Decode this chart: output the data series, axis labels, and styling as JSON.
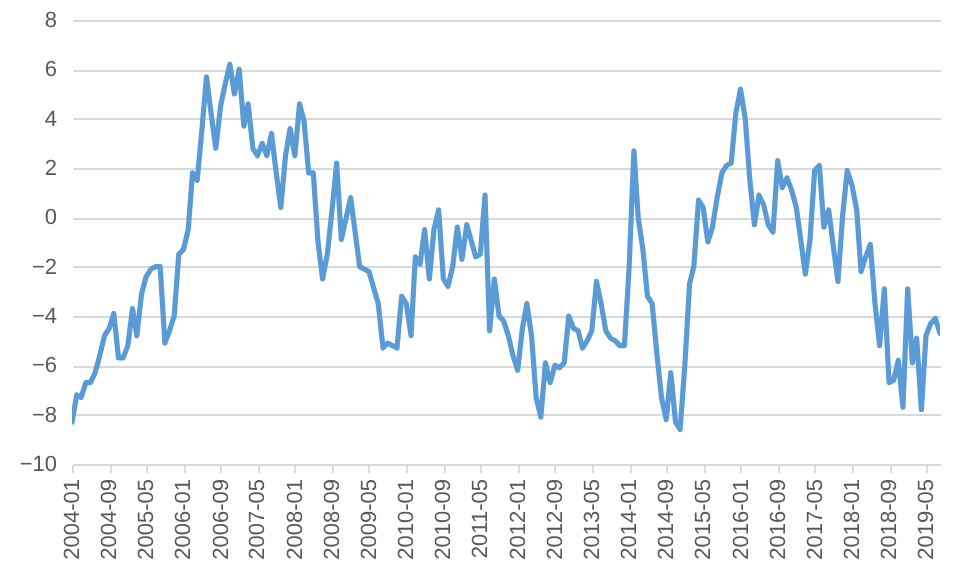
{
  "chart_data": {
    "type": "line",
    "x": [
      "2004-01",
      "2004-02",
      "2004-03",
      "2004-04",
      "2004-05",
      "2004-06",
      "2004-07",
      "2004-08",
      "2004-09",
      "2004-10",
      "2004-11",
      "2004-12",
      "2005-01",
      "2005-02",
      "2005-03",
      "2005-04",
      "2005-05",
      "2005-06",
      "2005-07",
      "2005-08",
      "2005-09",
      "2005-10",
      "2005-11",
      "2005-12",
      "2006-01",
      "2006-02",
      "2006-03",
      "2006-04",
      "2006-05",
      "2006-06",
      "2006-07",
      "2006-08",
      "2006-09",
      "2006-10",
      "2006-11",
      "2006-12",
      "2007-01",
      "2007-02",
      "2007-03",
      "2007-04",
      "2007-05",
      "2007-06",
      "2007-07",
      "2007-08",
      "2007-09",
      "2007-10",
      "2007-11",
      "2007-12",
      "2008-01",
      "2008-02",
      "2008-03",
      "2008-04",
      "2008-05",
      "2008-06",
      "2008-07",
      "2008-08",
      "2008-09",
      "2008-10",
      "2008-11",
      "2009-01",
      "2009-03",
      "2009-05",
      "2009-07",
      "2009-08",
      "2009-09",
      "2009-11",
      "2009-12",
      "2010-01",
      "2010-02",
      "2010-03",
      "2010-04",
      "2010-05",
      "2010-06",
      "2010-07",
      "2010-08",
      "2010-09",
      "2010-10",
      "2010-11",
      "2010-12",
      "2011-01",
      "2011-02",
      "2011-04",
      "2011-05",
      "2011-06",
      "2011-07",
      "2011-08",
      "2011-09",
      "2011-10",
      "2011-11",
      "2011-12",
      "2012-01",
      "2012-02",
      "2012-03",
      "2012-04",
      "2012-05",
      "2012-06",
      "2012-07",
      "2012-08",
      "2012-09",
      "2012-10",
      "2012-11",
      "2012-12",
      "2013-01",
      "2013-02",
      "2013-03",
      "2013-04",
      "2013-05",
      "2013-06",
      "2013-07",
      "2013-08",
      "2013-09",
      "2013-10",
      "2013-11",
      "2013-12",
      "2014-01",
      "2014-02",
      "2014-03",
      "2014-04",
      "2014-05",
      "2014-06",
      "2014-07",
      "2014-08",
      "2014-09",
      "2014-10",
      "2014-11",
      "2014-12",
      "2015-01",
      "2015-02",
      "2015-03",
      "2015-04",
      "2015-05",
      "2015-06",
      "2015-07",
      "2015-08",
      "2015-09",
      "2015-10",
      "2015-11",
      "2015-12",
      "2016-01",
      "2016-02",
      "2016-03",
      "2016-04",
      "2016-05",
      "2016-06",
      "2016-07",
      "2016-08",
      "2016-09",
      "2016-10",
      "2016-11",
      "2016-12",
      "2017-01",
      "2017-02",
      "2017-03",
      "2017-04",
      "2017-05",
      "2017-06",
      "2017-07",
      "2017-08",
      "2017-09",
      "2017-10",
      "2017-11",
      "2017-12",
      "2018-01",
      "2018-02",
      "2018-03",
      "2018-04",
      "2018-05",
      "2018-06",
      "2018-07",
      "2018-08",
      "2018-09",
      "2018-10",
      "2018-11",
      "2018-12",
      "2019-01",
      "2019-02",
      "2019-03",
      "2019-04",
      "2019-05",
      "2019-06",
      "2019-07",
      "2019-08"
    ],
    "series": [
      {
        "color": "#5b9bd5",
        "values": [
          -8.3,
          -7.2,
          -7.3,
          -6.7,
          -6.7,
          -6.3,
          -5.6,
          -4.8,
          -4.5,
          -3.9,
          -5.7,
          -5.7,
          -5.2,
          -3.7,
          -4.8,
          -3.1,
          -2.4,
          -2.1,
          -2.0,
          -2.0,
          -5.1,
          -4.6,
          -4.0,
          -1.5,
          -1.3,
          -0.5,
          1.8,
          1.5,
          3.5,
          5.7,
          4.2,
          2.8,
          4.5,
          5.4,
          6.2,
          5.0,
          6.0,
          3.7,
          4.6,
          2.8,
          2.5,
          3.0,
          2.5,
          3.4,
          1.8,
          0.4,
          2.5,
          3.6,
          2.5,
          4.6,
          3.9,
          1.8,
          1.8,
          -1.0,
          -2.5,
          -1.5,
          0.3,
          2.2,
          -0.9,
          0.8,
          -2.0,
          -2.2,
          -3.5,
          -5.3,
          -5.1,
          -5.3,
          -3.2,
          -3.5,
          -4.8,
          -1.6,
          -1.9,
          -0.5,
          -2.5,
          -0.5,
          0.3,
          -2.5,
          -2.8,
          -2.0,
          -0.4,
          -1.7,
          -0.3,
          -1.6,
          -1.5,
          0.9,
          -4.6,
          -2.5,
          -4.0,
          -4.2,
          -4.8,
          -5.6,
          -6.2,
          -4.5,
          -3.5,
          -4.8,
          -7.3,
          -8.1,
          -5.9,
          -6.7,
          -6.0,
          -6.1,
          -5.9,
          -4.0,
          -4.5,
          -4.6,
          -5.3,
          -5.0,
          -4.6,
          -2.6,
          -3.5,
          -4.6,
          -4.9,
          -5.0,
          -5.2,
          -5.2,
          -2.0,
          2.7,
          0.0,
          -1.3,
          -3.2,
          -3.5,
          -5.5,
          -7.3,
          -8.2,
          -6.3,
          -8.3,
          -8.6,
          -6.0,
          -2.7,
          -2.0,
          0.7,
          0.4,
          -1.0,
          -0.4,
          0.8,
          1.8,
          2.1,
          2.2,
          4.2,
          5.2,
          4.0,
          1.6,
          -0.3,
          0.9,
          0.5,
          -0.3,
          -0.6,
          2.3,
          1.2,
          1.6,
          1.1,
          0.4,
          -1.0,
          -2.3,
          -0.9,
          1.9,
          2.1,
          -0.4,
          0.3,
          -1.2,
          -2.6,
          0.1,
          1.9,
          1.3,
          0.3,
          -2.2,
          -1.6,
          -1.1,
          -3.5,
          -5.2,
          -2.9,
          -6.7,
          -6.6,
          -5.8,
          -7.7,
          -2.9,
          -5.9,
          -4.9,
          -7.8,
          -4.8,
          -4.3,
          -4.1,
          -4.7
        ]
      }
    ],
    "xlim": [
      "2004-01",
      "2019-08"
    ],
    "xticks": [
      "2004-01",
      "2004-09",
      "2005-05",
      "2006-01",
      "2006-09",
      "2007-05",
      "2008-01",
      "2008-09",
      "2009-05",
      "2010-01",
      "2010-09",
      "2011-05",
      "2012-01",
      "2012-09",
      "2013-05",
      "2014-01",
      "2014-09",
      "2015-05",
      "2016-01",
      "2016-09",
      "2017-05",
      "2018-01",
      "2018-09",
      "2019-05"
    ],
    "ylim": [
      -10,
      8
    ],
    "yticks": [
      -10,
      -8,
      -6,
      -4,
      -2,
      0,
      2,
      4,
      6,
      8
    ],
    "grid": "y"
  }
}
